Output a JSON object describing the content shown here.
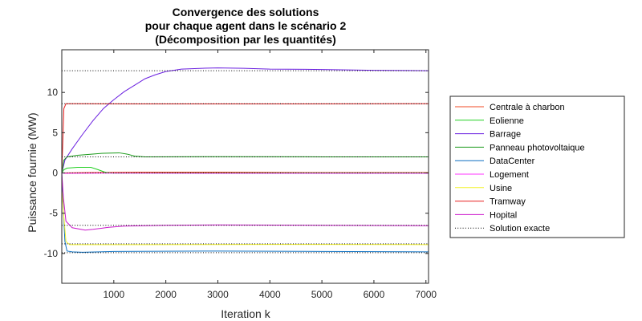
{
  "chart_data": {
    "type": "line",
    "title": [
      "Convergence des solutions",
      "pour chaque agent dans le scénario 2",
      "(Décomposition par les quantités)"
    ],
    "xlabel": "Iteration k",
    "ylabel": "Puissance fournie (MW)",
    "xlim": [
      0,
      7050
    ],
    "ylim": [
      -13.7,
      15.3
    ],
    "xticks": [
      1000,
      2000,
      3000,
      4000,
      5000,
      6000,
      7000
    ],
    "yticks": [
      -10,
      -5,
      0,
      5,
      10
    ],
    "grid": false,
    "legend_position": "outside-right",
    "series": [
      {
        "name": "Centrale à charbon",
        "color": "#f04b24",
        "style": "solid",
        "points": [
          [
            0,
            0
          ],
          [
            500,
            0.05
          ],
          [
            1500,
            0.1
          ],
          [
            3000,
            0.1
          ],
          [
            5000,
            0.05
          ],
          [
            7050,
            0.05
          ]
        ]
      },
      {
        "name": "Eolienne",
        "color": "#20d020",
        "style": "solid",
        "points": [
          [
            0,
            0
          ],
          [
            40,
            0.4
          ],
          [
            100,
            0.6
          ],
          [
            300,
            0.7
          ],
          [
            560,
            0.7
          ],
          [
            700,
            0.4
          ],
          [
            850,
            0.05
          ],
          [
            1000,
            -0.02
          ],
          [
            2000,
            0
          ],
          [
            7050,
            0
          ]
        ]
      },
      {
        "name": "Barrage",
        "color": "#6a1fe0",
        "style": "solid",
        "points": [
          [
            0,
            0
          ],
          [
            60,
            1.6
          ],
          [
            200,
            3.0
          ],
          [
            400,
            4.8
          ],
          [
            600,
            6.5
          ],
          [
            800,
            8.0
          ],
          [
            1000,
            9.1
          ],
          [
            1200,
            10.1
          ],
          [
            1400,
            10.9
          ],
          [
            1600,
            11.7
          ],
          [
            1800,
            12.2
          ],
          [
            2000,
            12.6
          ],
          [
            2300,
            12.9
          ],
          [
            2700,
            13.0
          ],
          [
            3000,
            13.05
          ],
          [
            3500,
            13.0
          ],
          [
            4000,
            12.9
          ],
          [
            5000,
            12.85
          ],
          [
            6000,
            12.75
          ],
          [
            7050,
            12.7
          ]
        ]
      },
      {
        "name": "Panneau photovoltaique",
        "color": "#1a9a1a",
        "style": "solid",
        "points": [
          [
            0,
            0
          ],
          [
            40,
            1.6
          ],
          [
            100,
            2.0
          ],
          [
            300,
            2.2
          ],
          [
            500,
            2.3
          ],
          [
            800,
            2.45
          ],
          [
            1100,
            2.5
          ],
          [
            1250,
            2.35
          ],
          [
            1400,
            2.1
          ],
          [
            1600,
            2.0
          ],
          [
            3000,
            2.02
          ],
          [
            5000,
            2.0
          ],
          [
            7050,
            2.0
          ]
        ]
      },
      {
        "name": "DataCenter",
        "color": "#0b6fc1",
        "style": "solid",
        "points": [
          [
            0,
            0
          ],
          [
            30,
            -4.5
          ],
          [
            60,
            -8.5
          ],
          [
            100,
            -9.7
          ],
          [
            200,
            -9.8
          ],
          [
            400,
            -9.85
          ],
          [
            1000,
            -9.75
          ],
          [
            3000,
            -9.7
          ],
          [
            5000,
            -9.75
          ],
          [
            7050,
            -9.8
          ]
        ]
      },
      {
        "name": "Logement",
        "color": "#ff33ff",
        "style": "solid",
        "points": [
          [
            0,
            0
          ],
          [
            60,
            -0.05
          ],
          [
            1000,
            -0.02
          ],
          [
            3000,
            -0.05
          ],
          [
            7050,
            -0.05
          ]
        ]
      },
      {
        "name": "Usine",
        "color": "#f2f22c",
        "style": "solid",
        "points": [
          [
            0,
            -2.0
          ],
          [
            40,
            -5.5
          ],
          [
            80,
            -8.5
          ],
          [
            150,
            -8.9
          ],
          [
            400,
            -8.9
          ],
          [
            1500,
            -8.9
          ],
          [
            4000,
            -8.88
          ],
          [
            7050,
            -8.9
          ]
        ]
      },
      {
        "name": "Tramway",
        "color": "#e82020",
        "style": "solid",
        "points": [
          [
            0,
            0
          ],
          [
            20,
            4.0
          ],
          [
            40,
            8.0
          ],
          [
            80,
            8.6
          ],
          [
            300,
            8.6
          ],
          [
            1500,
            8.57
          ],
          [
            4000,
            8.57
          ],
          [
            7050,
            8.6
          ]
        ]
      },
      {
        "name": "Hopital",
        "color": "#cc18cc",
        "style": "solid",
        "points": [
          [
            0,
            0
          ],
          [
            30,
            -3.0
          ],
          [
            80,
            -6.0
          ],
          [
            200,
            -6.8
          ],
          [
            450,
            -7.1
          ],
          [
            600,
            -7.0
          ],
          [
            900,
            -6.75
          ],
          [
            1200,
            -6.6
          ],
          [
            2000,
            -6.5
          ],
          [
            3000,
            -6.45
          ],
          [
            5000,
            -6.5
          ],
          [
            7050,
            -6.55
          ]
        ]
      },
      {
        "name": "Solution exacte",
        "color": "#000000",
        "style": "dotted",
        "hlines": [
          12.7,
          8.6,
          2.0,
          0.0,
          -6.5,
          -8.8,
          -9.9
        ]
      }
    ]
  }
}
